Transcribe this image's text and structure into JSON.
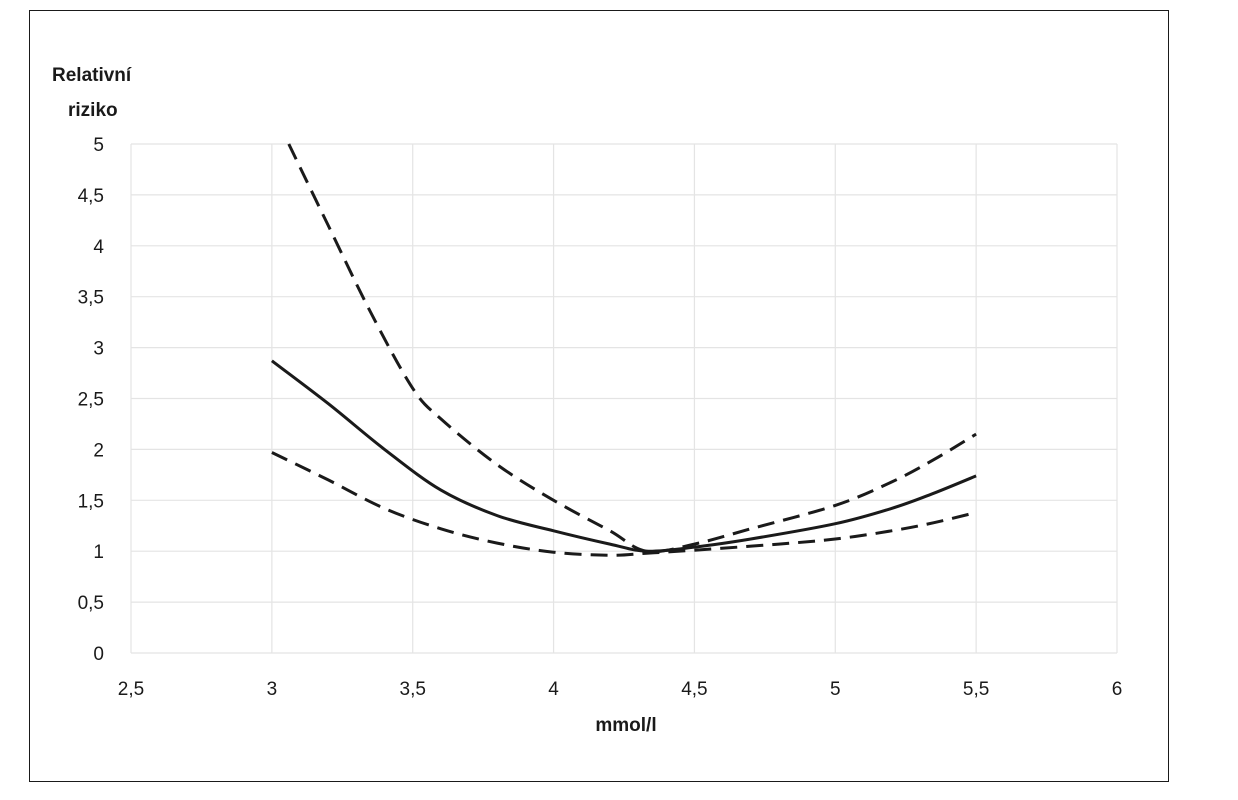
{
  "chart_data": {
    "type": "line",
    "title": "",
    "ylabel_lines": [
      "Relativní",
      "riziko"
    ],
    "xlabel": "mmol/l",
    "xlim": [
      2.5,
      6
    ],
    "ylim": [
      0,
      5
    ],
    "x_ticks": [
      "2,5",
      "3",
      "3,5",
      "4",
      "4,5",
      "5",
      "5,5",
      "6"
    ],
    "y_ticks": [
      "0",
      "0,5",
      "1",
      "1,5",
      "2",
      "2,5",
      "3",
      "3,5",
      "4",
      "4,5",
      "5"
    ],
    "grid": true,
    "legend": false,
    "series": [
      {
        "style": "solid",
        "color": "#1a1a1a",
        "points": [
          [
            3.0,
            2.87
          ],
          [
            3.2,
            2.45
          ],
          [
            3.4,
            2.0
          ],
          [
            3.6,
            1.6
          ],
          [
            3.8,
            1.35
          ],
          [
            4.0,
            1.2
          ],
          [
            4.2,
            1.07
          ],
          [
            4.33,
            1.0
          ],
          [
            4.5,
            1.04
          ],
          [
            4.7,
            1.12
          ],
          [
            5.0,
            1.27
          ],
          [
            5.2,
            1.42
          ],
          [
            5.35,
            1.57
          ],
          [
            5.5,
            1.74
          ]
        ]
      },
      {
        "style": "dashed",
        "color": "#1a1a1a",
        "points": [
          [
            3.06,
            5.0
          ],
          [
            3.2,
            4.2
          ],
          [
            3.35,
            3.35
          ],
          [
            3.5,
            2.6
          ],
          [
            3.6,
            2.3
          ],
          [
            3.8,
            1.85
          ],
          [
            4.0,
            1.5
          ],
          [
            4.2,
            1.2
          ],
          [
            4.33,
            1.0
          ],
          [
            4.5,
            1.07
          ],
          [
            4.7,
            1.22
          ],
          [
            5.0,
            1.45
          ],
          [
            5.2,
            1.68
          ],
          [
            5.35,
            1.9
          ],
          [
            5.5,
            2.15
          ]
        ]
      },
      {
        "style": "dashed",
        "color": "#1a1a1a",
        "points": [
          [
            3.0,
            1.97
          ],
          [
            3.2,
            1.7
          ],
          [
            3.4,
            1.42
          ],
          [
            3.6,
            1.22
          ],
          [
            3.8,
            1.08
          ],
          [
            4.0,
            0.99
          ],
          [
            4.2,
            0.96
          ],
          [
            4.33,
            0.98
          ],
          [
            4.5,
            1.01
          ],
          [
            4.8,
            1.07
          ],
          [
            5.0,
            1.12
          ],
          [
            5.2,
            1.2
          ],
          [
            5.35,
            1.28
          ],
          [
            5.5,
            1.38
          ]
        ]
      }
    ]
  }
}
